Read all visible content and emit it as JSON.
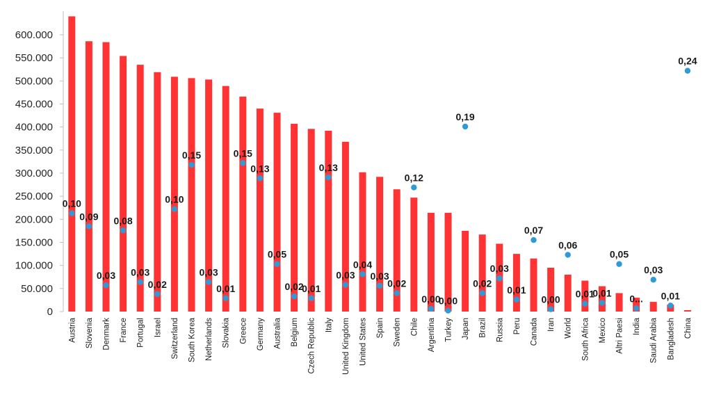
{
  "chart_data": {
    "type": "bar",
    "title": "",
    "xlabel": "",
    "ylabel": "",
    "ylim": [
      0,
      650000
    ],
    "yticks": [
      0,
      50000,
      100000,
      150000,
      200000,
      250000,
      300000,
      350000,
      400000,
      450000,
      500000,
      550000,
      600000
    ],
    "ytick_labels": [
      "0",
      "50.000",
      "100.000",
      "150.000",
      "200.000",
      "250.000",
      "300.000",
      "350.000",
      "400.000",
      "450.000",
      "500.000",
      "550.000",
      "600.000"
    ],
    "grid": false,
    "legend": "none",
    "bar_color": "#ff3333",
    "point_color": "#2e9bd6",
    "categories": [
      "Austria",
      "Slovenia",
      "Denmark",
      "France",
      "Portugal",
      "Israel",
      "Switzerland",
      "South Korea",
      "Netherlands",
      "Slovakia",
      "Greece",
      "Germany",
      "Australia",
      "Belgium",
      "Czech Republic",
      "Italy",
      "United Kingdom",
      "United States",
      "Spain",
      "Sweden",
      "Chile",
      "Argentina",
      "Turkey",
      "Japan",
      "Brazil",
      "Russia",
      "Peru",
      "Canada",
      "Iran",
      "World",
      "South Africa",
      "Mexico",
      "Altri Paesi",
      "India",
      "Saudi Arabia",
      "Bangladesh",
      "China"
    ],
    "series": [
      {
        "type": "bar",
        "values": [
          640000,
          586000,
          584000,
          554000,
          535000,
          519000,
          509000,
          506000,
          503000,
          489000,
          466000,
          440000,
          431000,
          407000,
          396000,
          392000,
          368000,
          302000,
          292000,
          265000,
          247000,
          214000,
          214000,
          175000,
          167000,
          147000,
          125000,
          115000,
          95000,
          80000,
          67000,
          55000,
          40000,
          30000,
          21000,
          15000,
          3000
        ]
      },
      {
        "type": "scatter",
        "values": [
          213000,
          185000,
          57000,
          176000,
          64000,
          38000,
          222000,
          318000,
          64000,
          29000,
          322000,
          289000,
          103000,
          33000,
          29000,
          291000,
          58000,
          81000,
          56000,
          40000,
          269000,
          6000,
          2000,
          401000,
          40000,
          72000,
          26000,
          155000,
          5000,
          123000,
          17000,
          19000,
          103000,
          7000,
          69000,
          13000,
          522000
        ],
        "labels": [
          "0,10",
          "0,09",
          "0,03",
          "0,08",
          "0,03",
          "0,02",
          "0,10",
          "0,15",
          "0,03",
          "0,01",
          "0,15",
          "0,13",
          "0,05",
          "0,02",
          "0,01",
          "0,13",
          "0,03",
          "0,04",
          "0,03",
          "0,02",
          "0,12",
          "0,00",
          "0,00",
          "0,19",
          "0,02",
          "0,03",
          "0,01",
          "0,07",
          "0,00",
          "0,06",
          "0,01",
          "0,01",
          "0,05",
          "0...",
          "0,03",
          "0,01",
          "0,24"
        ]
      }
    ]
  }
}
